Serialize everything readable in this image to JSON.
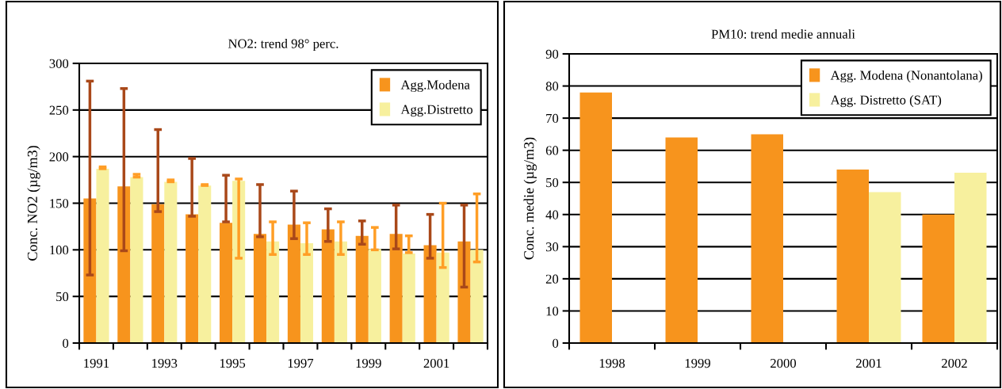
{
  "chart_data": [
    {
      "type": "bar",
      "title": "NO2: trend 98° perc.",
      "ylabel": "Conc. NO2 (µg/m3)",
      "categories": [
        "1991",
        null,
        "1993",
        null,
        "1995",
        null,
        "1997",
        null,
        "1999",
        null,
        "2001",
        null
      ],
      "series": [
        {
          "name": "Agg.Modena",
          "color": "#f7941d",
          "values": [
            155,
            168,
            149,
            138,
            129,
            117,
            127,
            122,
            115,
            117,
            105,
            109
          ],
          "errors": [
            [
              73,
              281
            ],
            [
              99,
              273
            ],
            [
              141,
              229
            ],
            [
              136,
              198
            ],
            [
              130,
              180
            ],
            [
              114,
              170
            ],
            [
              112,
              163
            ],
            [
              109,
              144
            ],
            [
              106,
              131
            ],
            [
              101,
              148
            ],
            [
              91,
              138
            ],
            [
              60,
              148
            ]
          ]
        },
        {
          "name": "Agg.Distretto",
          "color": "#f7f09e",
          "values": [
            187,
            178,
            173,
            169,
            174,
            109,
            107,
            109,
            101,
            96,
            97,
            100
          ],
          "errors": [
            [
              187,
              189
            ],
            [
              178,
              181
            ],
            [
              173,
              175
            ],
            [
              169,
              170
            ],
            [
              91,
              176
            ],
            [
              95,
              130
            ],
            [
              95,
              129
            ],
            [
              95,
              130
            ],
            [
              100,
              124
            ],
            [
              97,
              115
            ],
            [
              81,
              150
            ],
            [
              87,
              160
            ]
          ]
        }
      ],
      "ylim": [
        0,
        300
      ],
      "yticks": [
        0,
        50,
        100,
        150,
        200,
        250,
        300
      ],
      "grid": "y",
      "legend": "top right"
    },
    {
      "type": "bar",
      "title": "PM10: trend medie annuali",
      "ylabel": "Conc. medie (µg/m3)",
      "categories": [
        "1998",
        "1999",
        "2000",
        "2001",
        "2002"
      ],
      "series": [
        {
          "name": "Agg. Modena (Nonantolana)",
          "color": "#f7941d",
          "values": [
            78,
            64,
            65,
            54,
            40
          ]
        },
        {
          "name": "Agg. Distretto (SAT)",
          "color": "#f7f09e",
          "values": [
            null,
            null,
            null,
            47,
            53
          ]
        }
      ],
      "ylim": [
        0,
        90
      ],
      "yticks": [
        0,
        10,
        20,
        30,
        40,
        50,
        60,
        70,
        80,
        90
      ],
      "grid": "y",
      "legend": "top right"
    }
  ]
}
